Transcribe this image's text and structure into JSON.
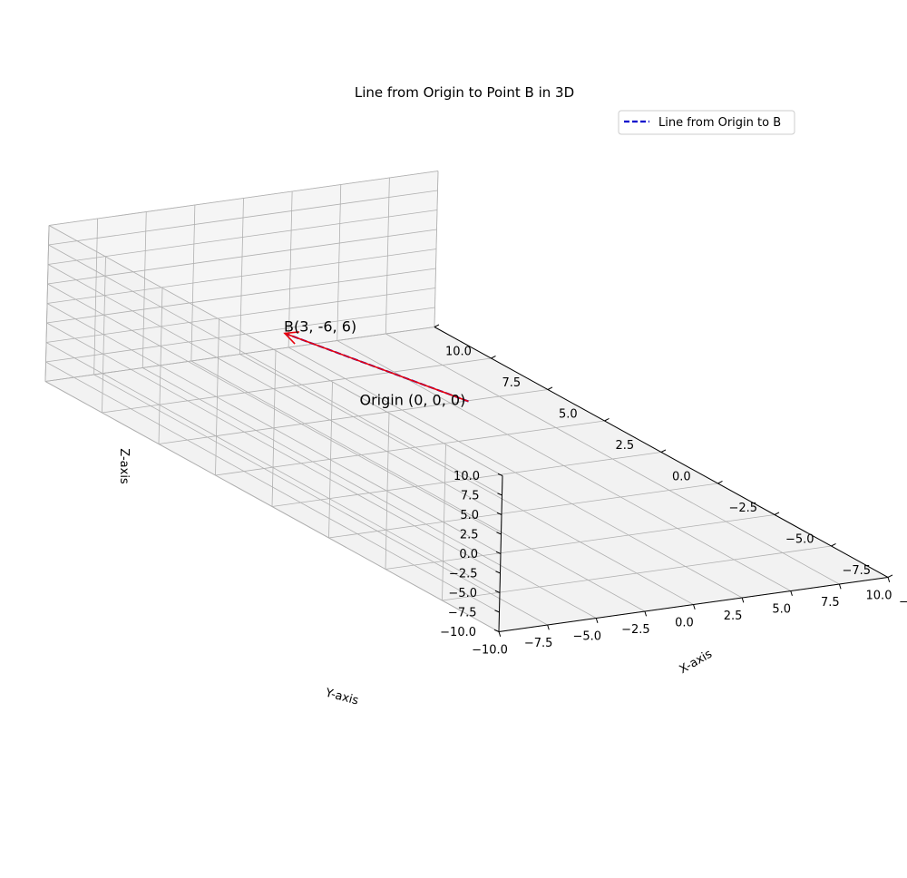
{
  "chart_data": {
    "type": "line",
    "projection": "3d",
    "title": "Line from Origin to Point B in 3D",
    "xlabel": "X-axis",
    "ylabel": "Y-axis",
    "zlabel": "Z-axis",
    "xlim": [
      -10,
      10
    ],
    "ylim": [
      -10,
      10
    ],
    "zlim": [
      -10,
      10
    ],
    "xticks": [
      -10,
      -7.5,
      -5,
      -2.5,
      0,
      2.5,
      5,
      7.5,
      10
    ],
    "yticks": [
      -10,
      -7.5,
      -5,
      -2.5,
      0,
      2.5,
      5,
      7.5,
      10
    ],
    "zticks": [
      -10,
      -7.5,
      -5,
      -2.5,
      0,
      2.5,
      5,
      7.5,
      10
    ],
    "xtick_labels": [
      "−10.0",
      "−7.5",
      "−5.0",
      "−2.5",
      "0.0",
      "2.5",
      "5.0",
      "7.5",
      "10.0"
    ],
    "ytick_labels": [
      "−10.0",
      "−7.5",
      "−5.0",
      "−2.5",
      "0.0",
      "2.5",
      "5.0",
      "7.5",
      "10.0"
    ],
    "ztick_labels": [
      "−10.0",
      "−7.5",
      "−5.0",
      "−2.5",
      "0.0",
      "2.5",
      "5.0",
      "7.5",
      "10.0"
    ],
    "grid": true,
    "legend_position": "upper-right",
    "series": [
      {
        "name": "Line from Origin to B",
        "style": "dashed",
        "color": "#0000cc",
        "points": [
          [
            0,
            0,
            0
          ],
          [
            3,
            -6,
            6
          ]
        ]
      }
    ],
    "vector": {
      "from": [
        0,
        0,
        0
      ],
      "to": [
        3,
        -6,
        6
      ],
      "color": "#e8000b"
    },
    "annotations": [
      {
        "text": "Origin (0, 0, 0)",
        "at": [
          0,
          0,
          0
        ]
      },
      {
        "text": "B(3, -6, 6)",
        "at": [
          3,
          -6,
          6
        ]
      }
    ],
    "colors": {
      "pane": "#f2f2f2",
      "grid": "#b0b0b0",
      "vector": "#e8000b",
      "line": "#0000cc"
    }
  }
}
